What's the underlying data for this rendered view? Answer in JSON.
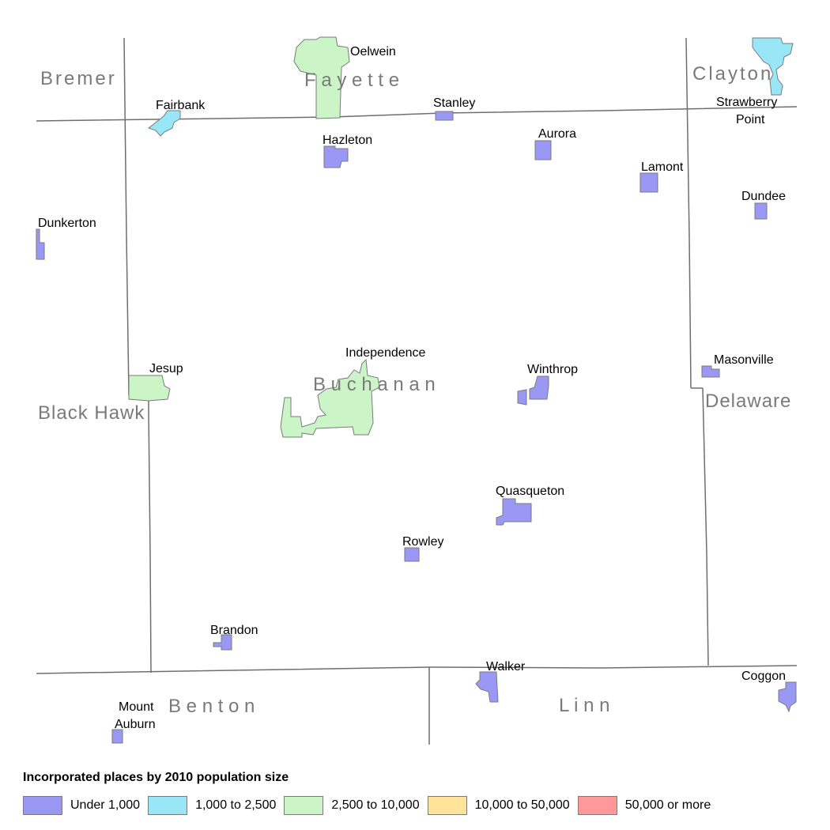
{
  "legend": {
    "title": "Incorporated places by 2010 population size",
    "classes": [
      {
        "label": "Under 1,000",
        "color": "#9999f5"
      },
      {
        "label": "1,000 to 2,500",
        "color": "#99e6f7"
      },
      {
        "label": "2,500 to 10,000",
        "color": "#ccf5c7"
      },
      {
        "label": "10,000 to 50,000",
        "color": "#ffe399"
      },
      {
        "label": "50,000 or more",
        "color": "#ff9999"
      }
    ]
  },
  "counties": {
    "bremer": "Bremer",
    "fayette": "F a y e t t e",
    "clayton": "Clayton",
    "black_hawk": "Black Hawk",
    "buchanan": "B u c h a n a n",
    "delaware": "Delaware",
    "benton": "B e n t o n",
    "linn": "L i n n"
  },
  "places": {
    "oelwein": "Oelwein",
    "fairbank": "Fairbank",
    "stanley": "Stanley",
    "strawberry_point_1": "Strawberry",
    "strawberry_point_2": "Point",
    "hazleton": "Hazleton",
    "aurora": "Aurora",
    "lamont": "Lamont",
    "dundee": "Dundee",
    "dunkerton": "Dunkerton",
    "independence": "Independence",
    "jesup": "Jesup",
    "winthrop": "Winthrop",
    "masonville": "Masonville",
    "quasqueton": "Quasqueton",
    "rowley": "Rowley",
    "brandon": "Brandon",
    "walker": "Walker",
    "coggon": "Coggon",
    "mount_auburn_1": "Mount",
    "mount_auburn_2": "Auburn"
  }
}
